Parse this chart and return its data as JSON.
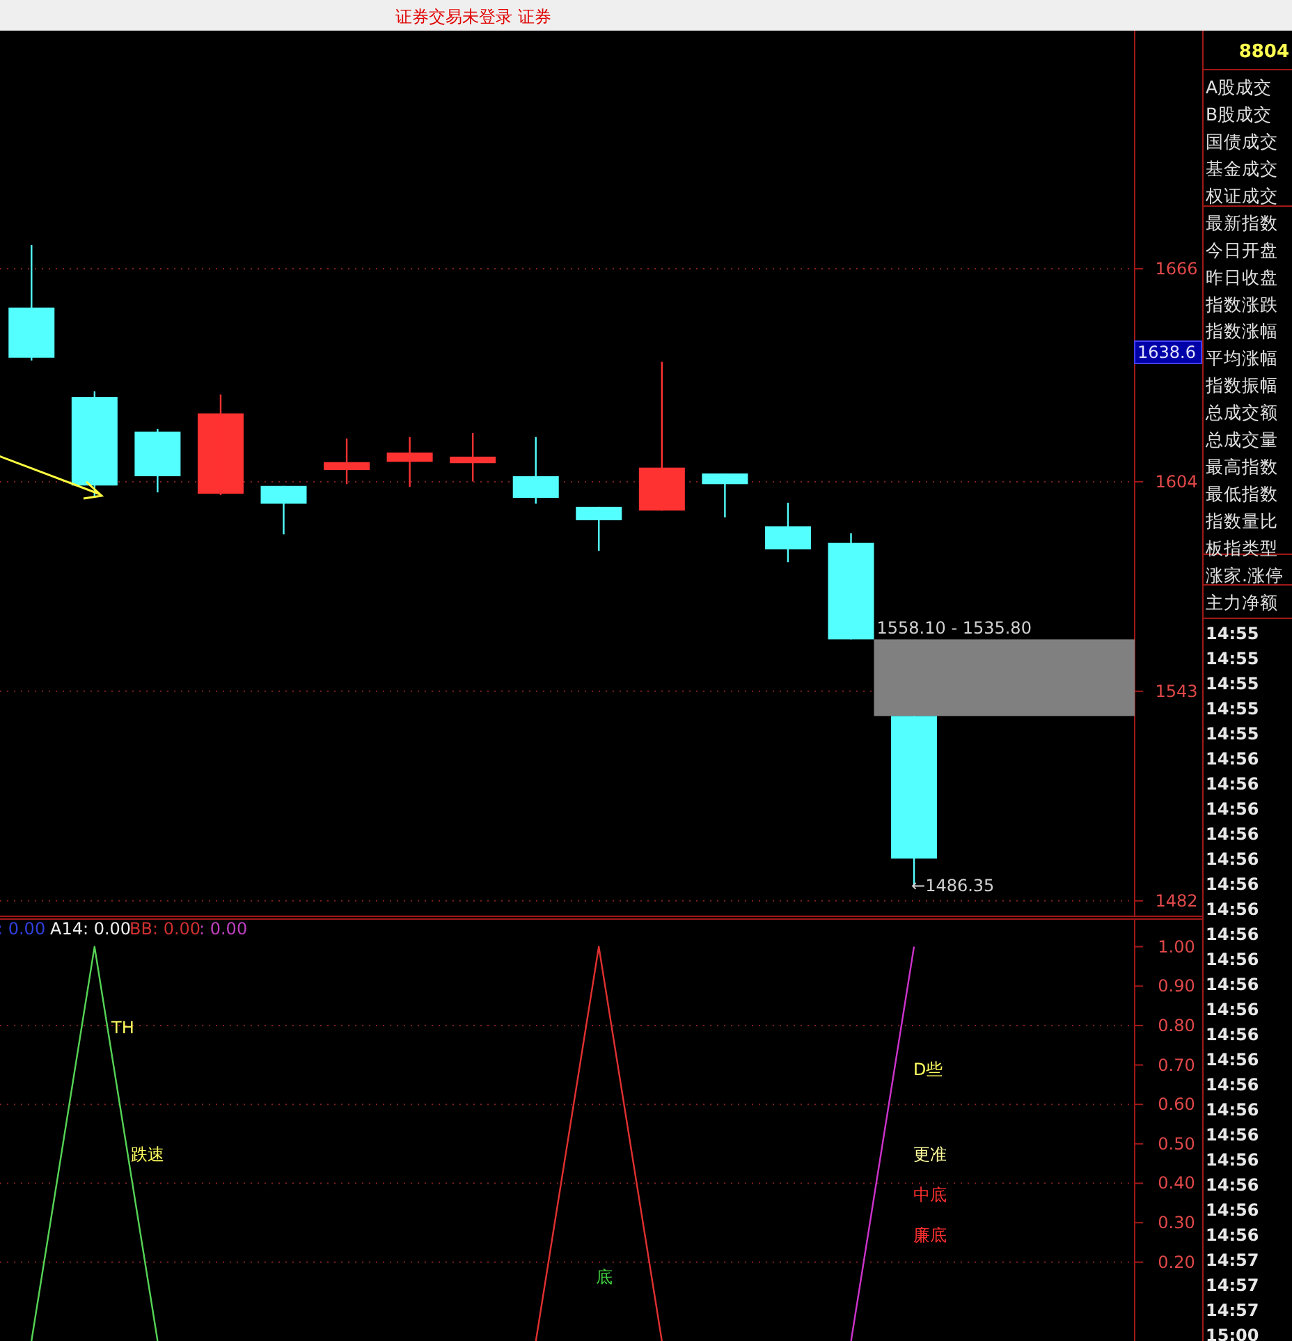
{
  "chart_data": [
    {
      "type": "candlestick",
      "title": "证券交易未登录  证券",
      "categories": [
        null,
        null,
        null,
        null,
        null,
        null,
        null,
        null,
        null,
        null,
        null,
        null,
        null,
        null,
        null,
        null,
        null,
        null
      ],
      "ohlc": [
        [
          1654.7,
          1672.9,
          1639.3,
          1640.1
        ],
        [
          1628.7,
          1630.3,
          1599.7,
          1602.9
        ],
        [
          1618.6,
          1619.4,
          1600.9,
          1605.6
        ],
        [
          1600.5,
          1629.4,
          1600.1,
          1623.9
        ],
        [
          1602.8,
          1602.8,
          1588.7,
          1597.6
        ],
        [
          1607.4,
          1616.6,
          1603.3,
          1609.7
        ],
        [
          1609.8,
          1617.0,
          1602.5,
          1612.5
        ],
        [
          1609.4,
          1618.2,
          1604.1,
          1611.3
        ],
        [
          1605.6,
          1617.0,
          1597.6,
          1599.3
        ],
        [
          1596.7,
          1596.7,
          1583.9,
          1592.8
        ],
        [
          1595.6,
          1638.9,
          1595.6,
          1608.1
        ],
        [
          1606.4,
          1606.4,
          1593.6,
          1603.3
        ],
        [
          1591.0,
          1597.9,
          1580.6,
          1584.3
        ],
        [
          1586.2,
          1589.0,
          1558.1,
          1558.1
        ],
        [
          1535.8,
          1535.8,
          1486.35,
          1494.3
        ],
        null,
        null,
        null
      ],
      "colors": [
        "#54ffff",
        "#54ffff",
        "#54ffff",
        "#ff3232",
        "#54ffff",
        "#ff3232",
        "#ff3232",
        "#ff3232",
        "#54ffff",
        "#54ffff",
        "#ff3232",
        "#54ffff",
        "#54ffff",
        "#54ffff",
        "#54ffff",
        null,
        null,
        null
      ],
      "ylim": [
        1477.5,
        1734.1
      ],
      "yticks": [
        1666,
        1604,
        1543,
        1482
      ],
      "grid": "y",
      "bands": [
        {
          "axis": "y",
          "from": 1535.8,
          "to": 1558.1,
          "label": "1558.10 - 1535.80",
          "color": "#808080"
        }
      ],
      "annotations": [
        "1638.6",
        "←1486.35"
      ]
    },
    {
      "type": "line",
      "categories": [
        null,
        null,
        null,
        null,
        null,
        null,
        null,
        null,
        null,
        null,
        null,
        null,
        null,
        null,
        null,
        null,
        null,
        null
      ],
      "series": [
        {
          "color": "#55d455",
          "values": [
            0,
            1,
            0,
            null,
            null,
            null,
            null,
            null,
            null,
            null,
            null,
            null,
            null,
            null,
            null,
            null,
            null,
            null
          ]
        },
        {
          "color": "#e03030",
          "values": [
            null,
            null,
            null,
            null,
            null,
            null,
            null,
            null,
            0,
            1,
            0,
            null,
            null,
            null,
            null,
            null,
            null,
            null
          ]
        },
        {
          "color": "#cc33cc",
          "values": [
            null,
            null,
            null,
            null,
            null,
            null,
            null,
            null,
            null,
            null,
            null,
            null,
            null,
            0,
            1,
            null,
            null,
            null
          ]
        }
      ],
      "ylim": [
        0,
        1.07
      ],
      "yticks": [
        {
          "value": 1,
          "label": "1.00"
        },
        {
          "value": 0.9,
          "label": "0.90"
        },
        {
          "value": 0.8,
          "label": "0.80"
        },
        {
          "value": 0.7,
          "label": "0.70"
        },
        {
          "value": 0.6,
          "label": "0.60"
        },
        {
          "value": 0.5,
          "label": "0.50"
        },
        {
          "value": 0.4,
          "label": "0.40"
        },
        {
          "value": 0.3,
          "label": "0.30"
        },
        {
          "value": 0.2,
          "label": "0.20"
        }
      ],
      "ref_lines": [
        {
          "axis": "y",
          "value": 0.8,
          "color": "#802020",
          "line_style": "dotted"
        },
        {
          "axis": "y",
          "value": 0.6,
          "color": "#802020",
          "line_style": "dotted"
        },
        {
          "axis": "y",
          "value": 0.4,
          "color": "#802020",
          "line_style": "dotted"
        },
        {
          "axis": "y",
          "value": 0.2,
          "color": "#802020",
          "line_style": "dotted"
        }
      ],
      "annotations": [
        ": 0.00",
        "A14: 0.00",
        "BB: 0.00",
        ": 0.00",
        "TH",
        "跌速",
        "底",
        "D些",
        "更准",
        "中底",
        "廉底"
      ]
    },
    {
      "type": "other",
      "title": "8804",
      "categories": [
        "A股成交",
        "B股成交",
        "国债成交",
        "基金成交",
        "权证成交",
        "最新指数",
        "今日开盘",
        "昨日收盘",
        "指数涨跌",
        "指数涨幅",
        "平均涨幅",
        "指数振幅",
        "总成交额",
        "总成交量",
        "最高指数",
        "最低指数",
        "指数量比",
        "板指类型",
        "涨家.涨停",
        "主力净额"
      ],
      "annotations": [
        "14:55",
        "14:55",
        "14:55",
        "14:55",
        "14:55",
        "14:56",
        "14:56",
        "14:56",
        "14:56",
        "14:56",
        "14:56",
        "14:56",
        "14:56",
        "14:56",
        "14:56",
        "14:56",
        "14:56",
        "14:56",
        "14:56",
        "14:56",
        "14:56",
        "14:56",
        "14:56",
        "14:56",
        "14:56",
        "14:57",
        "14:57",
        "14:57",
        "15:00"
      ]
    }
  ]
}
